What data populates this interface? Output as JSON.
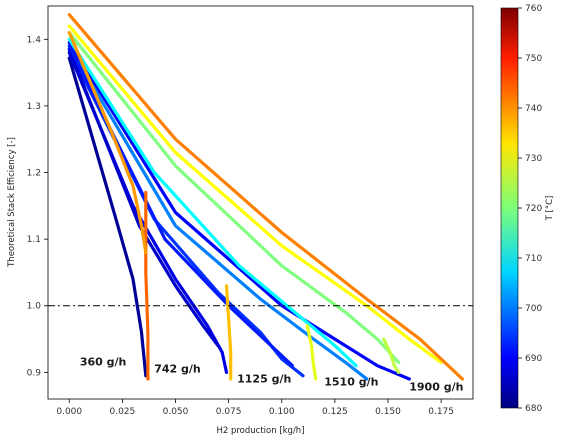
{
  "chart_data": {
    "type": "line",
    "title": "",
    "xlabel": "H2 production [kg/h]",
    "ylabel": "Theoretical Stack Efficiency [-]",
    "xlim": [
      -0.01,
      0.19
    ],
    "ylim": [
      0.86,
      1.45
    ],
    "xticks": [
      0.0,
      0.025,
      0.05,
      0.075,
      0.1,
      0.125,
      0.15,
      0.175
    ],
    "xtick_labels": [
      "0.000",
      "0.025",
      "0.050",
      "0.075",
      "0.100",
      "0.125",
      "0.150",
      "0.175"
    ],
    "yticks": [
      0.9,
      1.0,
      1.1,
      1.2,
      1.3,
      1.4
    ],
    "ytick_labels": [
      "0.9",
      "1.0",
      "1.1",
      "1.2",
      "1.3",
      "1.4"
    ],
    "reference_line": {
      "y": 1.0,
      "style": "dash-dot",
      "color": "#000000"
    },
    "colorbar": {
      "label": "T [°C]",
      "min": 680,
      "max": 760,
      "ticks": [
        680,
        690,
        700,
        710,
        720,
        730,
        740,
        750,
        760
      ],
      "colormap": "jet"
    },
    "annotations": [
      {
        "text": "360 g/h",
        "x": 0.005,
        "y": 0.91
      },
      {
        "text": "742 g/h",
        "x": 0.04,
        "y": 0.9
      },
      {
        "text": "1125 g/h",
        "x": 0.079,
        "y": 0.885
      },
      {
        "text": "1510 g/h",
        "x": 0.12,
        "y": 0.88
      },
      {
        "text": "1900 g/h",
        "x": 0.16,
        "y": 0.873
      }
    ],
    "series": [
      {
        "T": 682,
        "x": [
          0.0,
          0.022,
          0.03,
          0.034,
          0.036
        ],
        "y": [
          1.372,
          1.13,
          1.04,
          0.96,
          0.895
        ]
      },
      {
        "T": 688,
        "x": [
          0.0,
          0.03,
          0.05,
          0.065,
          0.072,
          0.074
        ],
        "y": [
          1.38,
          1.15,
          1.04,
          0.97,
          0.93,
          0.9
        ]
      },
      {
        "T": 694,
        "x": [
          0.0,
          0.04,
          0.07,
          0.09,
          0.1,
          0.11
        ],
        "y": [
          1.385,
          1.13,
          1.02,
          0.96,
          0.92,
          0.895
        ]
      },
      {
        "T": 700,
        "x": [
          0.0,
          0.05,
          0.09,
          0.115,
          0.13,
          0.14
        ],
        "y": [
          1.39,
          1.12,
          1.01,
          0.95,
          0.915,
          0.89
        ]
      },
      {
        "T": 690,
        "x": [
          0.0,
          0.05,
          0.1,
          0.125,
          0.145,
          0.16
        ],
        "y": [
          1.395,
          1.14,
          1.0,
          0.95,
          0.91,
          0.89
        ]
      },
      {
        "T": 686,
        "x": [
          0.0,
          0.033,
          0.05,
          0.063,
          0.07
        ],
        "y": [
          1.385,
          1.12,
          1.03,
          0.97,
          0.94
        ]
      },
      {
        "T": 692,
        "x": [
          0.0,
          0.045,
          0.075,
          0.095,
          0.105
        ],
        "y": [
          1.39,
          1.1,
          1.0,
          0.94,
          0.91
        ]
      },
      {
        "T": 710,
        "x": [
          0.0,
          0.04,
          0.08,
          0.11,
          0.125,
          0.135
        ],
        "y": [
          1.4,
          1.2,
          1.06,
          0.98,
          0.94,
          0.91
        ]
      },
      {
        "T": 720,
        "x": [
          0.0,
          0.05,
          0.1,
          0.13,
          0.145,
          0.155
        ],
        "y": [
          1.41,
          1.21,
          1.06,
          0.99,
          0.95,
          0.915
        ]
      },
      {
        "T": 730,
        "x": [
          0.0,
          0.05,
          0.1,
          0.14,
          0.16,
          0.175
        ],
        "y": [
          1.42,
          1.23,
          1.09,
          1.0,
          0.95,
          0.915
        ]
      },
      {
        "T": 740,
        "x": [
          0.0,
          0.05,
          0.1,
          0.14,
          0.165,
          0.185
        ],
        "y": [
          1.437,
          1.25,
          1.11,
          1.01,
          0.95,
          0.89
        ]
      },
      {
        "T": 742,
        "x": [
          0.036,
          0.036,
          0.037,
          0.037
        ],
        "y": [
          1.17,
          1.05,
          0.96,
          0.89
        ]
      },
      {
        "T": 735,
        "x": [
          0.074,
          0.075,
          0.076,
          0.076
        ],
        "y": [
          1.03,
          0.98,
          0.93,
          0.89
        ]
      },
      {
        "T": 728,
        "x": [
          0.112,
          0.114,
          0.115,
          0.116
        ],
        "y": [
          0.97,
          0.94,
          0.91,
          0.89
        ]
      },
      {
        "T": 725,
        "x": [
          0.148,
          0.151,
          0.153,
          0.155
        ],
        "y": [
          0.95,
          0.93,
          0.91,
          0.9
        ]
      },
      {
        "T": 738,
        "x": [
          0.0,
          0.02,
          0.03,
          0.034,
          0.036
        ],
        "y": [
          1.41,
          1.26,
          1.18,
          1.12,
          1.08
        ]
      }
    ]
  }
}
